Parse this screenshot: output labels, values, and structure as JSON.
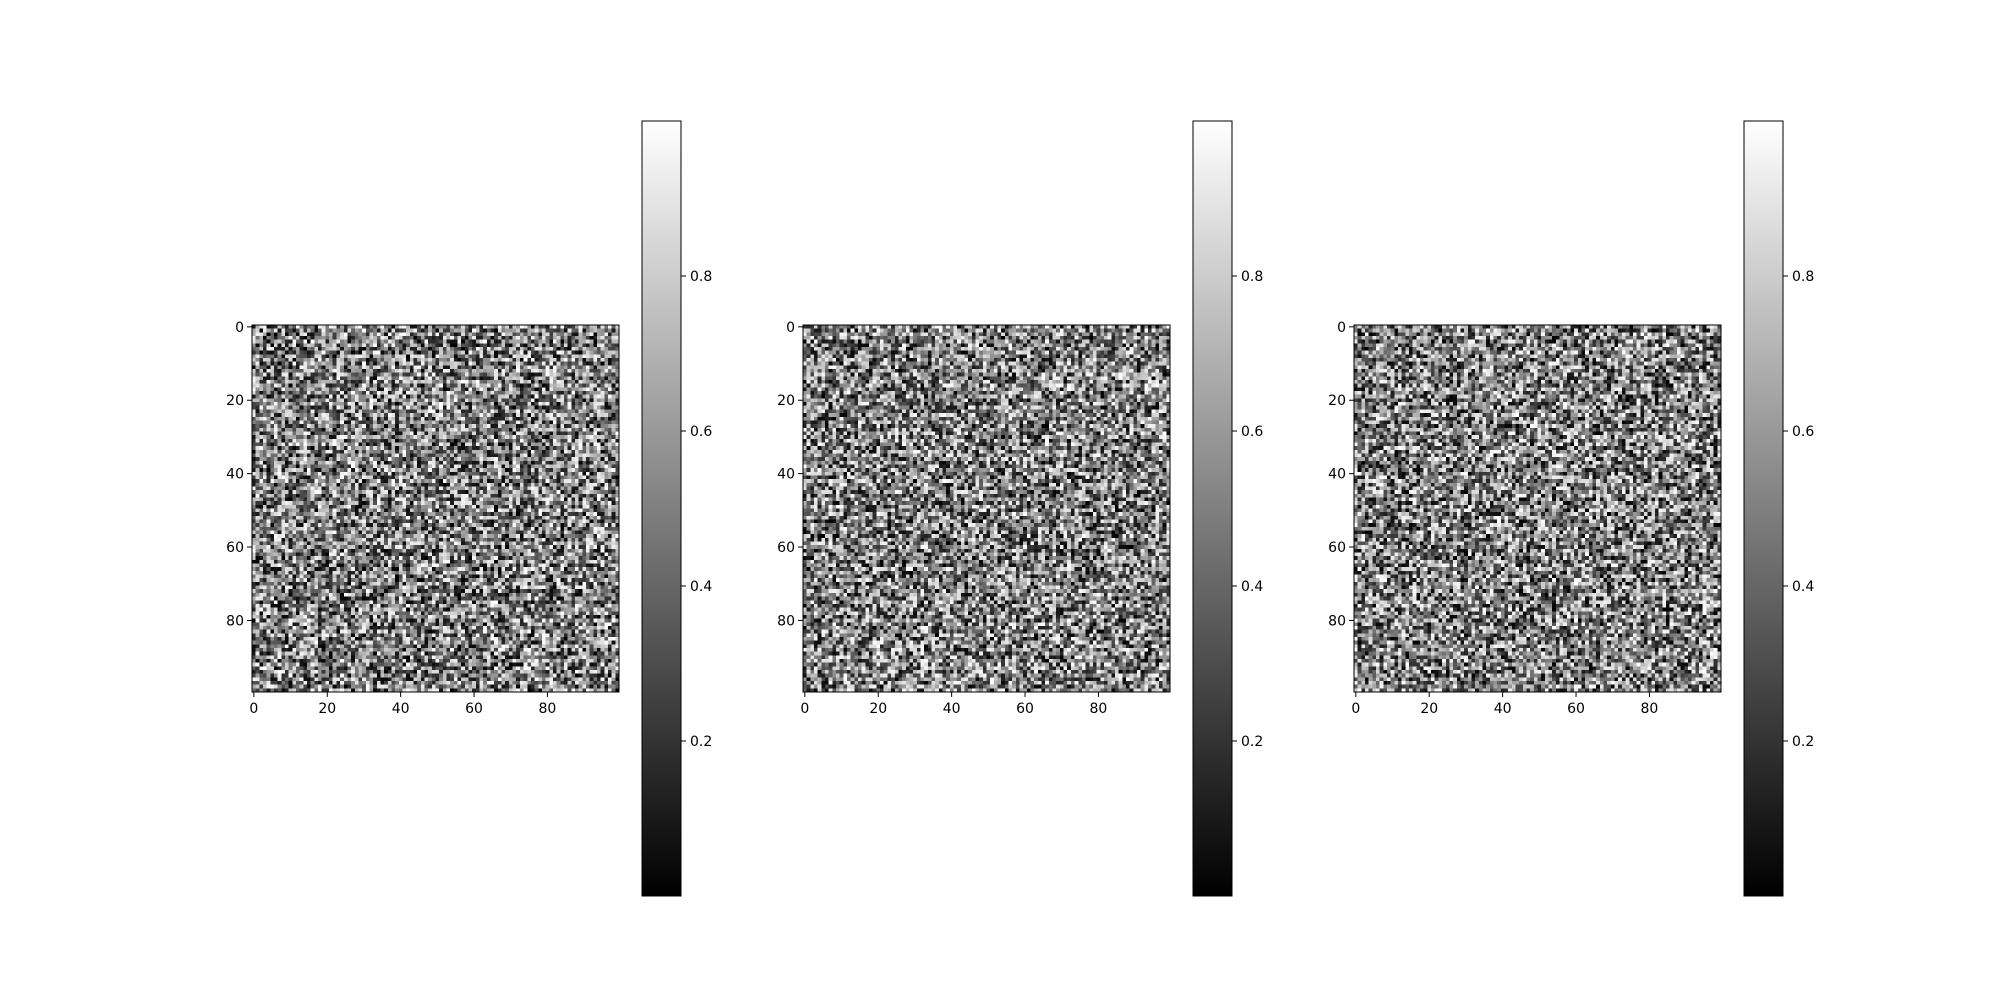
{
  "chart_data": [
    {
      "type": "heatmap",
      "colormap": "gray",
      "grid": false,
      "rows": 100,
      "cols": 100,
      "xlim": [
        -0.5,
        99.5
      ],
      "ylim": [
        99.5,
        -0.5
      ],
      "x_ticks": [
        "0",
        "20",
        "40",
        "60",
        "80"
      ],
      "y_ticks": [
        "0",
        "20",
        "40",
        "60",
        "80"
      ],
      "values": "random noise, uniform 0–1 (100×100)",
      "colorbar": {
        "range": [
          0.0,
          1.0
        ],
        "ticks": [
          "0.2",
          "0.4",
          "0.6",
          "0.8"
        ]
      }
    },
    {
      "type": "heatmap",
      "colormap": "gray",
      "grid": false,
      "rows": 100,
      "cols": 100,
      "xlim": [
        -0.5,
        99.5
      ],
      "ylim": [
        99.5,
        -0.5
      ],
      "x_ticks": [
        "0",
        "20",
        "40",
        "60",
        "80"
      ],
      "y_ticks": [
        "0",
        "20",
        "40",
        "60",
        "80"
      ],
      "values": "random noise, uniform 0–1 (100×100)",
      "colorbar": {
        "range": [
          0.0,
          1.0
        ],
        "ticks": [
          "0.2",
          "0.4",
          "0.6",
          "0.8"
        ]
      }
    },
    {
      "type": "heatmap",
      "colormap": "gray",
      "grid": false,
      "rows": 100,
      "cols": 100,
      "xlim": [
        -0.5,
        99.5
      ],
      "ylim": [
        99.5,
        -0.5
      ],
      "x_ticks": [
        "0",
        "20",
        "40",
        "60",
        "80"
      ],
      "y_ticks": [
        "0",
        "20",
        "40",
        "60",
        "80"
      ],
      "values": "random noise, uniform 0–1 (100×100)",
      "colorbar": {
        "range": [
          0.0,
          1.0
        ],
        "ticks": [
          "0.2",
          "0.4",
          "0.6",
          "0.8"
        ]
      }
    }
  ]
}
